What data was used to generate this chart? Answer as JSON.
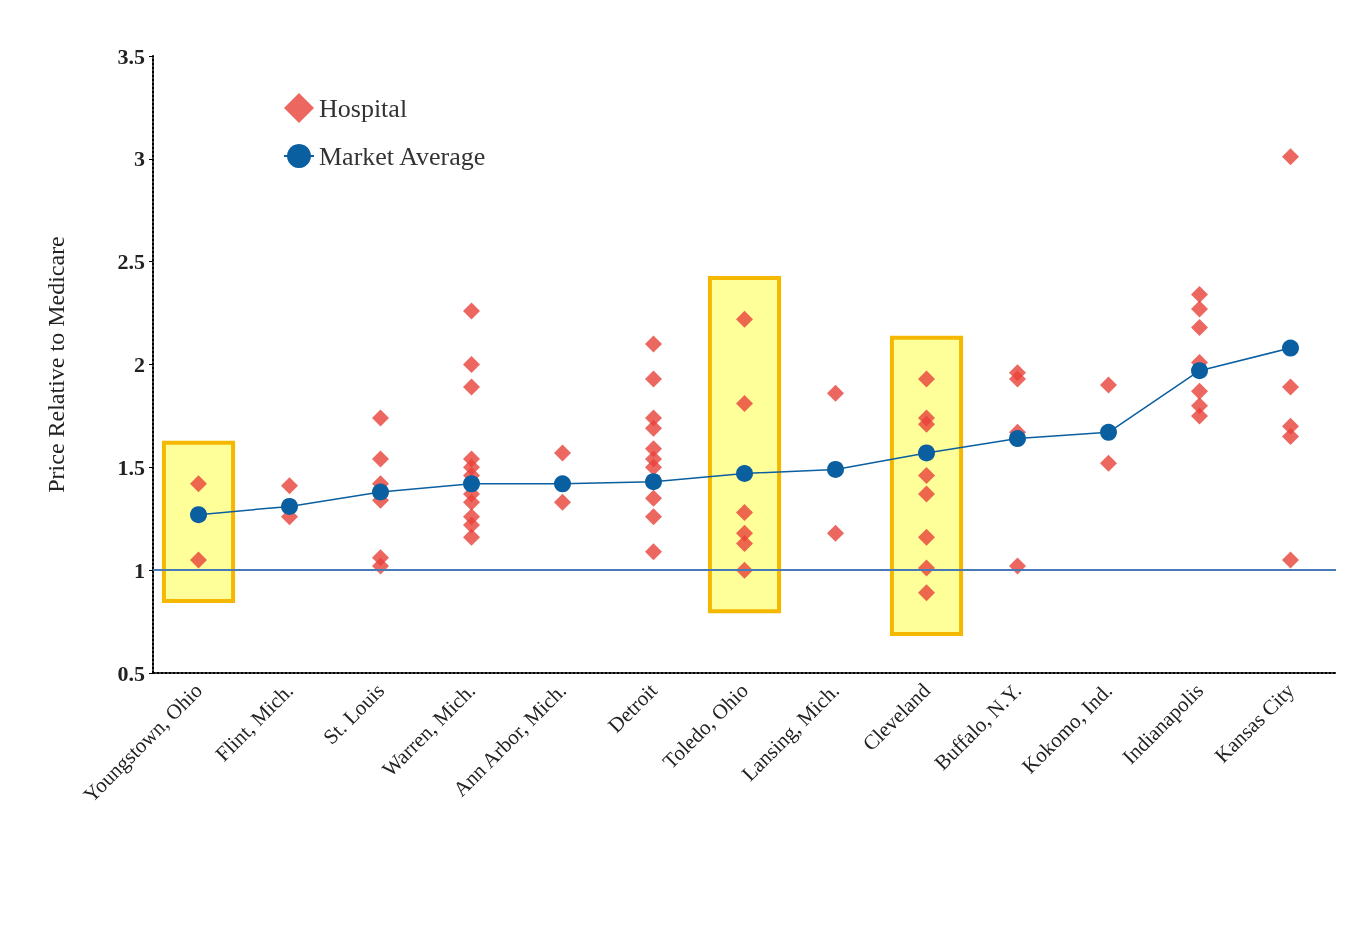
{
  "chart_data": {
    "type": "scatter",
    "ylabel": "Price Relative to Medicare",
    "categories": [
      "Youngstown, Ohio",
      "Flint, Mich.",
      "St. Louis",
      "Warren, Mich.",
      "Ann Arbor, Mich.",
      "Detroit",
      "Toledo, Ohio",
      "Lansing, Mich.",
      "Cleveland",
      "Buffalo, N.Y.",
      "Kokomo, Ind.",
      "Indianapolis",
      "Kansas City"
    ],
    "series": [
      {
        "name": "Hospital",
        "marker": "diamond",
        "color": "#e8413a",
        "x": [
          "Youngstown, Ohio",
          "Youngstown, Ohio",
          "Flint, Mich.",
          "Flint, Mich.",
          "St. Louis",
          "St. Louis",
          "St. Louis",
          "St. Louis",
          "St. Louis",
          "St. Louis",
          "Warren, Mich.",
          "Warren, Mich.",
          "Warren, Mich.",
          "Warren, Mich.",
          "Warren, Mich.",
          "Warren, Mich.",
          "Warren, Mich.",
          "Warren, Mich.",
          "Warren, Mich.",
          "Warren, Mich.",
          "Warren, Mich.",
          "Ann Arbor, Mich.",
          "Ann Arbor, Mich.",
          "Detroit",
          "Detroit",
          "Detroit",
          "Detroit",
          "Detroit",
          "Detroit",
          "Detroit",
          "Detroit",
          "Detroit",
          "Detroit",
          "Toledo, Ohio",
          "Toledo, Ohio",
          "Toledo, Ohio",
          "Toledo, Ohio",
          "Toledo, Ohio",
          "Toledo, Ohio",
          "Lansing, Mich.",
          "Lansing, Mich.",
          "Cleveland",
          "Cleveland",
          "Cleveland",
          "Cleveland",
          "Cleveland",
          "Cleveland",
          "Cleveland",
          "Cleveland",
          "Buffalo, N.Y.",
          "Buffalo, N.Y.",
          "Buffalo, N.Y.",
          "Buffalo, N.Y.",
          "Kokomo, Ind.",
          "Kokomo, Ind.",
          "Indianapolis",
          "Indianapolis",
          "Indianapolis",
          "Indianapolis",
          "Indianapolis",
          "Indianapolis",
          "Indianapolis",
          "Kansas City",
          "Kansas City",
          "Kansas City",
          "Kansas City",
          "Kansas City"
        ],
        "values": [
          1.42,
          1.05,
          1.41,
          1.26,
          1.74,
          1.54,
          1.42,
          1.34,
          1.06,
          1.02,
          2.26,
          2.0,
          1.89,
          1.54,
          1.5,
          1.46,
          1.37,
          1.33,
          1.26,
          1.22,
          1.16,
          1.57,
          1.33,
          2.1,
          1.93,
          1.74,
          1.69,
          1.59,
          1.54,
          1.5,
          1.35,
          1.26,
          1.09,
          2.22,
          1.81,
          1.28,
          1.18,
          1.13,
          1.0,
          1.86,
          1.18,
          1.93,
          1.74,
          1.71,
          1.46,
          1.37,
          1.16,
          1.01,
          0.89,
          1.96,
          1.93,
          1.67,
          1.02,
          1.9,
          1.52,
          2.34,
          2.27,
          2.18,
          2.01,
          1.87,
          1.8,
          1.75,
          3.01,
          1.89,
          1.7,
          1.65,
          1.05
        ]
      },
      {
        "name": "Market Average",
        "type": "line",
        "marker": "circle",
        "color": "#0a5fa0",
        "values": [
          1.27,
          1.31,
          1.38,
          1.42,
          1.42,
          1.43,
          1.47,
          1.49,
          1.57,
          1.64,
          1.67,
          1.97,
          2.08
        ]
      }
    ],
    "ylim": [
      0.5,
      3.5
    ],
    "yticks": [
      0.5,
      1,
      1.5,
      2,
      2.5,
      3,
      3.5
    ],
    "grid": false,
    "legend": "top left",
    "ref_lines": [
      {
        "axis": "y",
        "value": 1,
        "color": "#4a79b8"
      }
    ],
    "bands": [
      {
        "axis": "x",
        "from": "Youngstown, Ohio",
        "to": "Youngstown, Ohio",
        "color": "#ffff99"
      },
      {
        "axis": "x",
        "from": "Toledo, Ohio",
        "to": "Toledo, Ohio",
        "color": "#ffff99"
      },
      {
        "axis": "x",
        "from": "Cleveland",
        "to": "Cleveland",
        "color": "#ffff99"
      }
    ]
  }
}
